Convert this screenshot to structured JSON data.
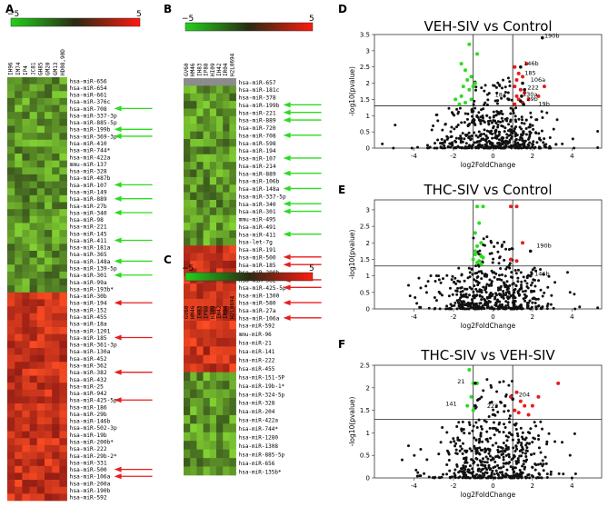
{
  "colors": {
    "green": "#2bdc1f",
    "red": "#e81e1e",
    "dark": "#1f1f1f",
    "grey": "#9a9a9a"
  },
  "chart_data": [
    {
      "type": "heatmap",
      "panel": "A",
      "scale": {
        "min": "−5",
        "max": "5"
      },
      "columns": [
        "IH96",
        "IM74",
        "IP4",
        "JC81",
        "GH85",
        "GM20",
        "GM13",
        "HD08,90D"
      ],
      "rows": [
        "hsa-miR-656",
        "hsa-miR-654",
        "hsa-miR-661",
        "hsa-miR-376c",
        "hsa-miR-708",
        "hsa-miR-337-3p",
        "hsa-miR-885-5p",
        "hsa-miR-199b",
        "hsa-miR-369-3p",
        "hsa-miR-410",
        "hsa-miR-744*",
        "hsa-miR-422a",
        "mmu-miR-137",
        "hsa-miR-328",
        "hsa-miR-487b",
        "hsa-miR-107",
        "hsa-miR-149",
        "hsa-miR-889",
        "hsa-miR-27b",
        "hsa-miR-340",
        "hsa-miR-98",
        "hsa-miR-221",
        "hsa-miR-145",
        "hsa-miR-411",
        "hsa-miR-181a",
        "hsa-miR-365",
        "hsa-miR-148a",
        "hsa-miR-139-5p",
        "hsa-miR-301",
        "hsa-miR-99a",
        "hsa-miR-193b*",
        "hsa-miR-30b",
        "hsa-miR-194",
        "hsa-miR-152",
        "hsa-miR-455",
        "hsa-miR-18a",
        "hsa-miR-1201",
        "hsa-miR-185",
        "hsa-miR-361-3p",
        "hsa-miR-130a",
        "hsa-miR-452",
        "hsa-miR-362",
        "hsa-miR-382",
        "hsa-miR-432",
        "hsa-miR-25",
        "hsa-miR-942",
        "hsa-miR-425-5p",
        "hsa-miR-186",
        "hsa-miR-29b",
        "hsa-miR-146b",
        "hsa-miR-502-3p",
        "hsa-miR-19b",
        "hsa-miR-200b*",
        "hsa-miR-222",
        "hsa-miR-29b-2*",
        "hsa-miR-331",
        "hsa-miR-500",
        "hsa-miR-106a",
        "hsa-miR-200a",
        "hsa-miR-190b",
        "hsa-miR-592"
      ],
      "green_arrows": [
        "hsa-miR-708",
        "hsa-miR-199b",
        "hsa-miR-369-3p",
        "hsa-miR-107",
        "hsa-miR-889",
        "hsa-miR-340",
        "hsa-miR-411",
        "hsa-miR-148a",
        "hsa-miR-301"
      ],
      "red_arrows": [
        "hsa-miR-194",
        "hsa-miR-185",
        "hsa-miR-382",
        "hsa-miR-425-5p",
        "hsa-miR-500",
        "hsa-miR-106a"
      ],
      "down_rows": 31
    },
    {
      "type": "heatmap",
      "panel": "B",
      "scale": {
        "min": "−5",
        "max": "5"
      },
      "columns": [
        "GV60",
        "HM46",
        "IH83",
        "IP88",
        "HI09",
        "IH42",
        "IR04",
        "H2L0694"
      ],
      "rows": [
        "hsa-miR-657",
        "hsa-miR-181c",
        "hsa-miR-378",
        "hsa-miR-199b",
        "hsa-miR-221",
        "hsa-miR-889",
        "hsa-miR-720",
        "hsa-miR-708",
        "hsa-miR-598",
        "hsa-miR-194",
        "hsa-miR-107",
        "hsa-miR-214",
        "hsa-miR-889",
        "hsa-miR-106b",
        "hsa-miR-148a",
        "hsa-miR-337-5p",
        "hsa-miR-340",
        "hsa-miR-301",
        "mmu-miR-495",
        "hsa-miR-491",
        "hsa-miR-411",
        "hsa-let-7g",
        "hsa-miR-191",
        "hsa-miR-500",
        "hsa-miR-185",
        "hsa-miR-200b",
        "hsa-miR-382",
        "hsa-miR-425-5p",
        "hsa-miR-1300",
        "hsa-miR-580",
        "hsa-miR-27a",
        "hsa-miR-106a"
      ],
      "green_arrows": [
        "hsa-miR-199b",
        "hsa-miR-221",
        "hsa-miR-889",
        "hsa-miR-708",
        "hsa-miR-107",
        "hsa-miR-148a",
        "hsa-miR-340",
        "hsa-miR-301",
        "hsa-miR-411"
      ],
      "red_arrows": [
        "hsa-miR-500",
        "hsa-miR-185",
        "hsa-miR-382",
        "hsa-miR-425-5p",
        "hsa-miR-580",
        "hsa-miR-106a"
      ],
      "down_rows": 22
    },
    {
      "type": "heatmap",
      "panel": "C",
      "scale": {
        "min": "−5",
        "max": "5"
      },
      "columns": [
        "GV60",
        "HM46",
        "IH83",
        "IP88",
        "HI09",
        "IH42",
        "IR04",
        "H2L0694"
      ],
      "rows": [
        "hsa-miR-592",
        "mmu-miR-96",
        "hsa-miR-21",
        "hsa-miR-141",
        "hsa-miR-222",
        "hsa-miR-455",
        "hsa-miR-151-5P",
        "hsa-miR-19b-1*",
        "hsa-miR-324-5p",
        "hsa-miR-328",
        "hsa-miR-204",
        "hsa-miR-422a",
        "hsa-miR-744*",
        "hsa-miR-1280",
        "hsa-miR-1308",
        "hsa-miR-885-5p",
        "hsa-miR-656",
        "hsa-miR-135b*"
      ],
      "green_arrows": [],
      "red_arrows": [],
      "up_rows": 6
    },
    {
      "type": "scatter",
      "panel": "D",
      "title": "VEH-SIV vs Control",
      "xlabel": "log2FoldChange",
      "ylabel": "-log10(pvalue)",
      "xlim": [
        -6,
        5.5
      ],
      "ylim": [
        0,
        3.5
      ],
      "xticks": [
        -4,
        -2,
        0,
        2,
        4
      ],
      "yticks": [
        0,
        0.5,
        1,
        1.5,
        2,
        2.5,
        3,
        3.5
      ],
      "hline": 1.3,
      "vlines": [
        -1,
        1
      ],
      "green_points": [
        [
          -1.6,
          2.6
        ],
        [
          -1.2,
          3.2
        ],
        [
          -1.4,
          2.4
        ],
        [
          -0.8,
          2.9
        ],
        [
          -1.1,
          2.2
        ],
        [
          -1.5,
          1.9
        ],
        [
          -1.2,
          1.8
        ],
        [
          -1.6,
          1.6
        ],
        [
          -1.1,
          1.5
        ],
        [
          -1.4,
          1.4
        ],
        [
          -1.9,
          1.5
        ],
        [
          -1.0,
          1.9
        ],
        [
          -1.3,
          2.1
        ],
        [
          -0.9,
          2.0
        ],
        [
          -1.7,
          1.35
        ]
      ],
      "red_points": [
        [
          1.1,
          2.5
        ],
        [
          1.3,
          2.3
        ],
        [
          1.2,
          2.1
        ],
        [
          1.5,
          2.2
        ],
        [
          1.1,
          1.9
        ],
        [
          1.4,
          1.8
        ],
        [
          1.6,
          1.7
        ],
        [
          1.2,
          1.6
        ],
        [
          1.8,
          1.5
        ],
        [
          1.3,
          1.5
        ],
        [
          1.5,
          1.4
        ],
        [
          1.1,
          1.35
        ],
        [
          2.3,
          1.6
        ],
        [
          2.6,
          1.9
        ],
        [
          1.7,
          2.6
        ]
      ],
      "highlight_points": [
        [
          2.5,
          3.4
        ],
        [
          1.4,
          2.5
        ],
        [
          1.5,
          2.0
        ],
        [
          1.6,
          1.8
        ],
        [
          1.45,
          1.6
        ],
        [
          1.4,
          1.45
        ],
        [
          1.55,
          1.35
        ],
        [
          0.8,
          1.5
        ]
      ],
      "labels": [
        {
          "text": "190b",
          "x": 2.6,
          "y": 3.4
        },
        {
          "text": "146b",
          "x": 1.55,
          "y": 2.55
        },
        {
          "text": "185",
          "x": 1.6,
          "y": 2.25
        },
        {
          "text": "106a",
          "x": 1.9,
          "y": 2.05
        },
        {
          "text": "222",
          "x": 1.75,
          "y": 1.8
        },
        {
          "text": "18a",
          "x": 0.1,
          "y": 1.58
        },
        {
          "text": "130a",
          "x": 1.5,
          "y": 1.6
        },
        {
          "text": "29b",
          "x": 1.7,
          "y": 1.45
        },
        {
          "text": "19b",
          "x": 2.3,
          "y": 1.3
        }
      ]
    },
    {
      "type": "scatter",
      "panel": "E",
      "title": "THC-SIV vs Control",
      "xlabel": "log2FoldChange",
      "ylabel": "-log10(pvalue)",
      "xlim": [
        -6,
        5.5
      ],
      "ylim": [
        0,
        3.3
      ],
      "xticks": [
        -4,
        -2,
        0,
        2,
        4
      ],
      "yticks": [
        0,
        0.5,
        1,
        1.5,
        2,
        2.5,
        3
      ],
      "hline": 1.3,
      "vlines": [
        -1,
        1
      ],
      "green_points": [
        [
          -0.8,
          3.1
        ],
        [
          -0.5,
          3.1
        ],
        [
          -0.7,
          2.6
        ],
        [
          -0.9,
          2.3
        ],
        [
          -0.6,
          2.0
        ],
        [
          -0.8,
          1.9
        ],
        [
          -0.9,
          1.75
        ],
        [
          -0.6,
          1.6
        ],
        [
          -1.0,
          1.5
        ],
        [
          -0.7,
          1.45
        ],
        [
          -0.8,
          1.4
        ],
        [
          -0.5,
          1.55
        ],
        [
          -0.6,
          1.35
        ],
        [
          -0.9,
          1.65
        ]
      ],
      "red_points": [
        [
          0.9,
          3.1
        ],
        [
          1.2,
          3.1
        ],
        [
          1.5,
          2.0
        ],
        [
          0.9,
          1.5
        ],
        [
          1.2,
          1.45
        ]
      ],
      "highlight_points": [
        [
          1.9,
          1.75
        ],
        [
          1.9,
          1.0
        ]
      ],
      "labels": [
        {
          "text": "190b",
          "x": 2.2,
          "y": 1.85
        },
        {
          "text": "146b",
          "x": 2.1,
          "y": 1.0
        }
      ]
    },
    {
      "type": "scatter",
      "panel": "F",
      "title": "THC-SIV vs VEH-SIV",
      "xlabel": "log2FoldChange",
      "ylabel": "-log10(pvalue)",
      "xlim": [
        -6,
        5.5
      ],
      "ylim": [
        0,
        2.5
      ],
      "xticks": [
        -4,
        -2,
        0,
        2,
        4
      ],
      "yticks": [
        0,
        0.5,
        1,
        1.5,
        2,
        2.5
      ],
      "hline": 1.3,
      "vlines": [
        -1,
        1
      ],
      "green_points": [
        [
          -1.2,
          2.4
        ],
        [
          -1.0,
          2.1
        ],
        [
          -0.8,
          2.1
        ],
        [
          -1.1,
          1.8
        ],
        [
          -0.9,
          1.6
        ],
        [
          -1.3,
          1.6
        ],
        [
          -1.0,
          1.5
        ]
      ],
      "red_points": [
        [
          1.2,
          1.9
        ],
        [
          0.9,
          1.8
        ],
        [
          1.4,
          1.7
        ],
        [
          1.1,
          1.5
        ],
        [
          1.6,
          1.6
        ],
        [
          1.3,
          1.45
        ],
        [
          2.0,
          1.6
        ],
        [
          2.3,
          1.8
        ],
        [
          3.3,
          2.1
        ],
        [
          1.8,
          1.4
        ]
      ],
      "highlight_points": [
        [
          -0.9,
          2.1
        ],
        [
          -0.9,
          1.6
        ],
        [
          0.6,
          1.6
        ],
        [
          1.0,
          1.75
        ]
      ],
      "labels": [
        {
          "text": "21",
          "x": -1.8,
          "y": 2.1
        },
        {
          "text": "141",
          "x": -2.4,
          "y": 1.6
        },
        {
          "text": "222",
          "x": -0.3,
          "y": 1.55
        },
        {
          "text": "204",
          "x": 1.3,
          "y": 1.8
        }
      ]
    }
  ],
  "panel_labels": {
    "A": "A",
    "B": "B",
    "C": "C",
    "D": "D",
    "E": "E",
    "F": "F"
  }
}
